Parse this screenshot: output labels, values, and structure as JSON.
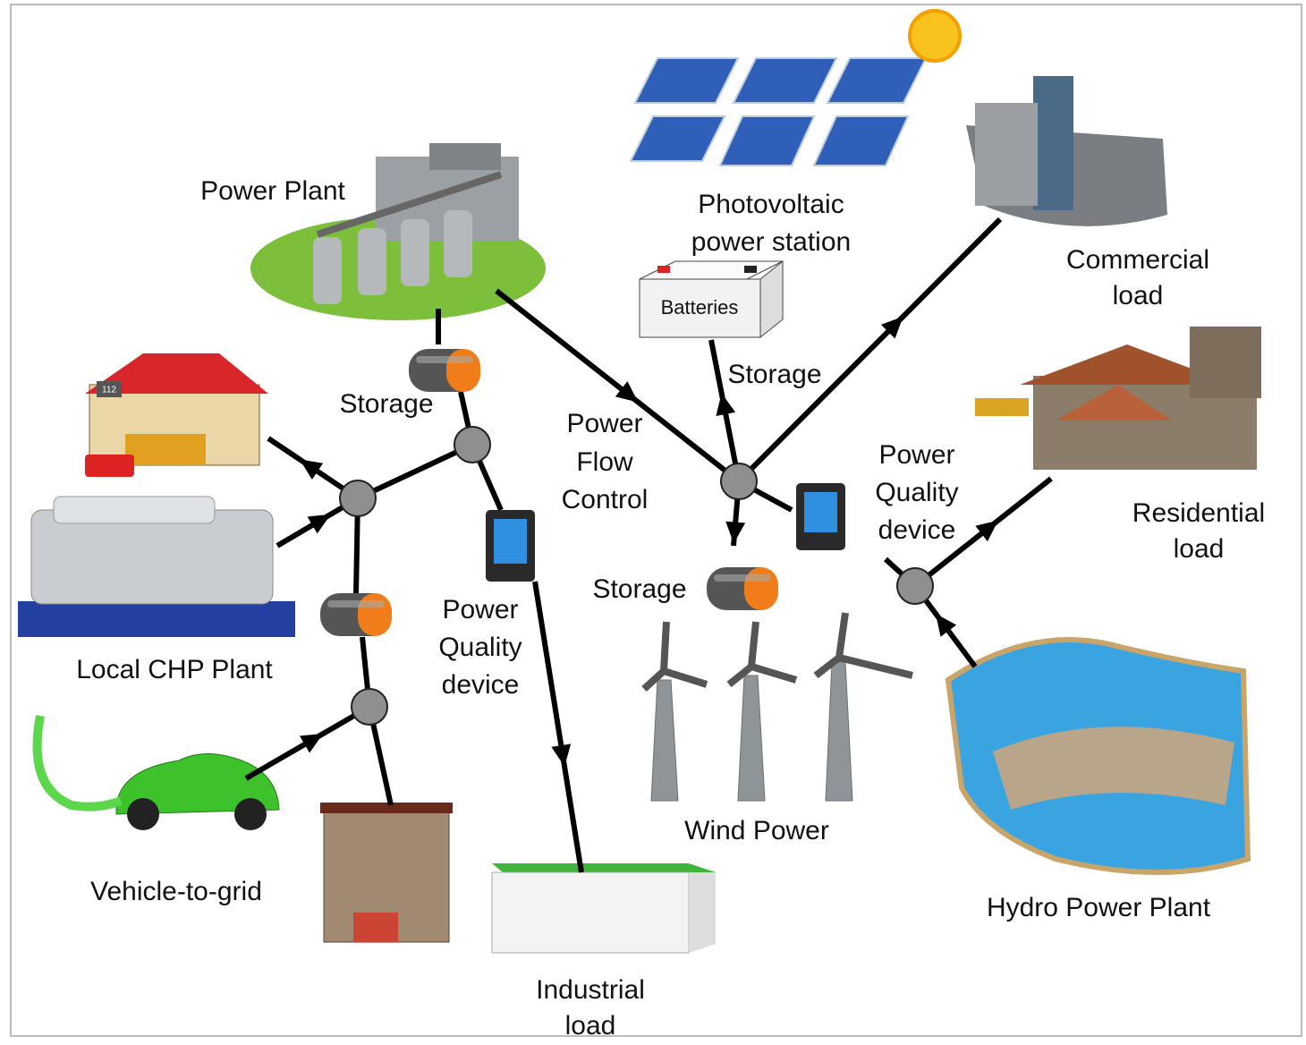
{
  "labels": {
    "power_plant": [
      "Power Plant"
    ],
    "photovoltaic": [
      "Photovoltaic",
      "power station"
    ],
    "commercial": [
      "Commercial",
      "load"
    ],
    "batteries": [
      "Batteries"
    ],
    "storage_pv": [
      "Storage"
    ],
    "storage_plant": [
      "Storage"
    ],
    "storage_wind": [
      "Storage"
    ],
    "power_flow_control": [
      "Power",
      "Flow",
      "Control"
    ],
    "power_quality_right": [
      "Power",
      "Quality",
      "device"
    ],
    "residential": [
      "Residential",
      "load"
    ],
    "local_chp": [
      "Local CHP Plant"
    ],
    "power_quality_left": [
      "Power",
      "Quality",
      "device"
    ],
    "vehicle_to_grid": [
      "Vehicle-to-grid"
    ],
    "wind_power": [
      "Wind Power"
    ],
    "hydro": [
      "Hydro Power Plant"
    ],
    "industrial": [
      "Industrial",
      "load"
    ],
    "fire_station_sign": [
      "112"
    ]
  }
}
